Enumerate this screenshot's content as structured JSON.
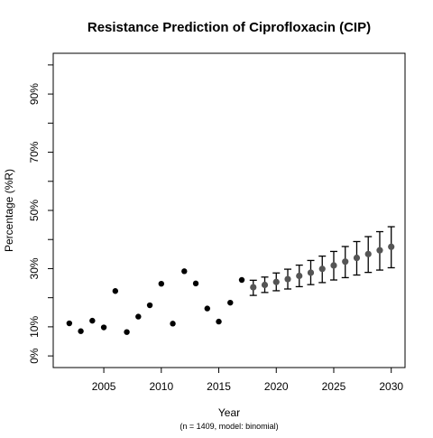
{
  "chart_data": {
    "type": "scatter",
    "title": "Resistance Prediction of Ciprofloxacin (CIP)",
    "xlabel": "Year",
    "ylabel": "Percentage (%R)",
    "note": "(n = 1409, model: binomial)",
    "xlim": [
      2000.6,
      2031.2
    ],
    "ylim": [
      -4,
      104
    ],
    "x_ticks": [
      2005,
      2010,
      2015,
      2020,
      2025,
      2030
    ],
    "x_tick_labels": [
      "2005",
      "2010",
      "2015",
      "2020",
      "2025",
      "2030"
    ],
    "y_ticks": [
      0,
      10,
      20,
      30,
      40,
      50,
      60,
      70,
      80,
      90,
      100
    ],
    "y_tick_labels": [
      "0%",
      "10%",
      "",
      "30%",
      "",
      "50%",
      "",
      "70%",
      "",
      "90%",
      ""
    ],
    "grid": false,
    "legend": "none",
    "series": [
      {
        "type": "observed",
        "color": "#000000",
        "x": [
          2002,
          2003,
          2004,
          2005,
          2006,
          2007,
          2008,
          2009,
          2010,
          2011,
          2012,
          2013,
          2014,
          2015,
          2016,
          2017
        ],
        "y": [
          11.2,
          8.5,
          12.1,
          9.8,
          22.3,
          8.2,
          13.5,
          17.4,
          24.8,
          11.1,
          29.1,
          24.9,
          16.3,
          11.8,
          18.3,
          26.1
        ]
      },
      {
        "type": "predicted",
        "color": "#555555",
        "x": [
          2018,
          2019,
          2020,
          2021,
          2022,
          2023,
          2024,
          2025,
          2026,
          2027,
          2028,
          2029,
          2030
        ],
        "y": [
          23.6,
          24.4,
          25.4,
          26.4,
          27.5,
          28.6,
          29.9,
          31.1,
          32.4,
          33.7,
          35.0,
          36.3,
          37.5
        ],
        "lower": [
          20.8,
          21.8,
          22.4,
          23.0,
          23.8,
          24.5,
          25.2,
          26.1,
          26.9,
          27.8,
          28.7,
          29.5,
          30.3
        ],
        "upper": [
          26.0,
          27.1,
          28.5,
          29.8,
          31.2,
          32.8,
          34.3,
          35.9,
          37.6,
          39.3,
          41.0,
          42.7,
          44.4
        ]
      }
    ]
  }
}
